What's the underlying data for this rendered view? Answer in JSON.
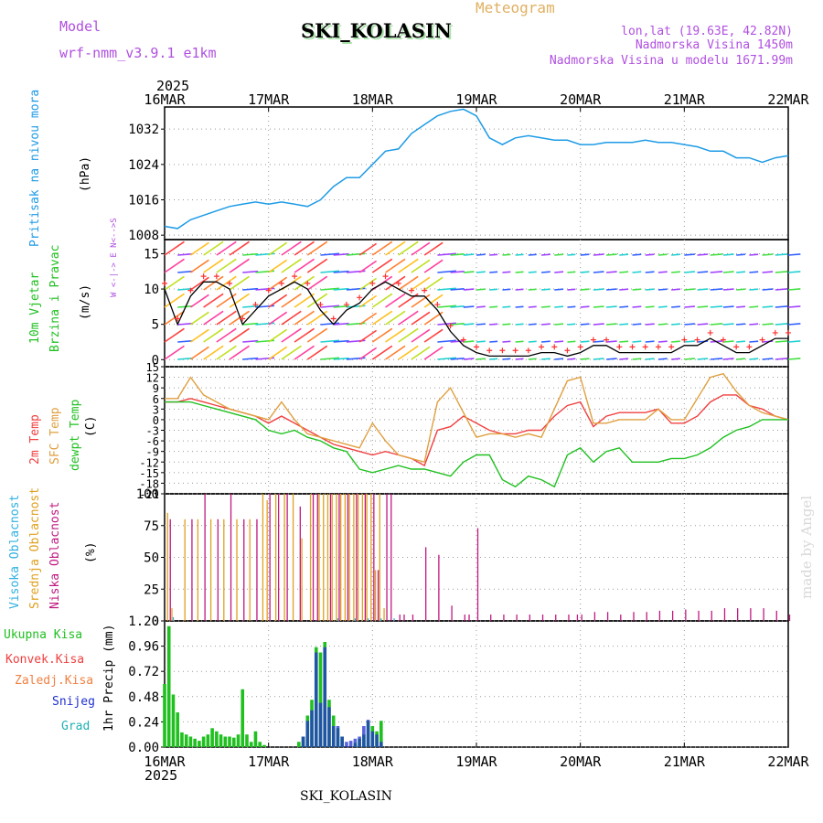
{
  "header": {
    "model_label": "Model",
    "model_name": "wrf-nmm_v3.9.1 e1km",
    "title": "SKI_KOLASIN",
    "subtitle": "Meteogram",
    "coords": "lon,lat (19.63E, 42.82N)",
    "elevation": "Nadmorska Visina 1450m",
    "model_elevation": "Nadmorska Visina u modelu 1671.99m",
    "year_top": "2025",
    "year_bottom": "2025",
    "footer": "SKI_KOLASIN",
    "credit": "made by Angel"
  },
  "colors": {
    "pressure": "#1e9be6",
    "wind_line": "#000000",
    "wind_cross": "#ff3030",
    "temp2m": "#f04040",
    "sfc": "#e0a040",
    "dewpt": "#20c020",
    "high_cloud": "#30b0e0",
    "mid_cloud": "#e0a020",
    "low_cloud": "#c01880",
    "total": "#20c020",
    "conv": "#f04040",
    "frozen": "#f08040",
    "snow": "#2030d0",
    "hail": "#20b0b0",
    "purple_text": "#b050e0",
    "orange_text": "#e0b060"
  },
  "axis": {
    "days": [
      "16MAR",
      "17MAR",
      "18MAR",
      "19MAR",
      "20MAR",
      "21MAR",
      "22MAR"
    ]
  },
  "chart_data": [
    {
      "type": "line",
      "panel": "pressure",
      "ylabel_lines": [
        "Pritisak na nivou mora"
      ],
      "unit": "(hPa)",
      "yticks": [
        1008,
        1016,
        1024,
        1032
      ],
      "ylim": [
        1007,
        1037
      ],
      "x_hours": [
        0,
        3,
        6,
        9,
        12,
        15,
        18,
        21,
        24,
        27,
        30,
        33,
        36,
        39,
        42,
        45,
        48,
        51,
        54,
        57,
        60,
        63,
        66,
        69,
        72,
        75,
        78,
        81,
        84,
        87,
        90,
        93,
        96,
        99,
        102,
        105,
        108,
        111,
        114,
        117,
        120,
        123,
        126,
        129,
        132,
        135,
        138,
        141,
        144
      ],
      "values": [
        1010,
        1009.5,
        1011.5,
        1012.5,
        1013.5,
        1014.5,
        1015,
        1015.5,
        1015,
        1015.5,
        1015,
        1014.5,
        1016,
        1019,
        1021,
        1021,
        1024,
        1027,
        1027.5,
        1031,
        1033,
        1035,
        1036,
        1036.5,
        1035,
        1030,
        1028.5,
        1030,
        1030.5,
        1030,
        1029.5,
        1029.5,
        1028.5,
        1028.5,
        1029,
        1029,
        1029,
        1029.5,
        1029,
        1029,
        1028.5,
        1028,
        1027,
        1027,
        1025.5,
        1025.5,
        1024.5,
        1025.5,
        1026
      ]
    },
    {
      "type": "line",
      "panel": "wind",
      "ylabel_lines": [
        "10m Vjetar",
        "Brzina i Pravac"
      ],
      "unit": "(m/s)",
      "compass": "W <-|-> E   N<-->S",
      "yticks": [
        0,
        5,
        10,
        15
      ],
      "ylim": [
        -1,
        17
      ],
      "x_hours": [
        0,
        3,
        6,
        9,
        12,
        15,
        18,
        21,
        24,
        27,
        30,
        33,
        36,
        39,
        42,
        45,
        48,
        51,
        54,
        57,
        60,
        63,
        66,
        69,
        72,
        75,
        78,
        81,
        84,
        87,
        90,
        93,
        96,
        99,
        102,
        105,
        108,
        111,
        114,
        117,
        120,
        123,
        126,
        129,
        132,
        135,
        138,
        141,
        144
      ],
      "values": [
        10,
        5,
        9,
        11,
        11,
        10,
        5,
        7,
        9,
        10,
        11,
        10,
        7,
        5,
        7,
        8,
        10,
        11,
        10,
        9,
        9,
        7,
        4,
        2,
        1,
        0.5,
        0.5,
        0.5,
        0.5,
        1,
        1,
        0.5,
        1,
        2,
        2,
        1,
        1,
        1,
        1,
        1,
        2,
        2,
        3,
        2,
        1,
        1,
        2,
        3,
        3
      ]
    },
    {
      "type": "line",
      "panel": "temperature",
      "ylabel_lines": [
        "2m Temp",
        "SFC Temp",
        "dewpt Temp"
      ],
      "unit": "(C)",
      "yticks": [
        -21,
        -18,
        -15,
        -12,
        -9,
        -6,
        -3,
        0,
        3,
        6,
        9,
        12,
        15
      ],
      "ylim": [
        -21,
        15
      ],
      "x_hours": [
        0,
        3,
        6,
        9,
        12,
        15,
        18,
        21,
        24,
        27,
        30,
        33,
        36,
        39,
        42,
        45,
        48,
        51,
        54,
        57,
        60,
        63,
        66,
        69,
        72,
        75,
        78,
        81,
        84,
        87,
        90,
        93,
        96,
        99,
        102,
        105,
        108,
        111,
        114,
        117,
        120,
        123,
        126,
        129,
        132,
        135,
        138,
        141,
        144
      ],
      "series": [
        {
          "name": "2m Temp",
          "values": [
            5,
            5,
            6,
            5,
            4,
            3,
            2,
            1,
            -1,
            1,
            -1,
            -3,
            -5,
            -7,
            -8,
            -9,
            -10,
            -9,
            -10,
            -11,
            -13,
            -3,
            -2,
            1,
            -1,
            -3,
            -4,
            -4,
            -3,
            -3,
            1,
            4,
            5,
            -2,
            1,
            2,
            2,
            2,
            3,
            -1,
            -1,
            1,
            5,
            7,
            7,
            4,
            3,
            1,
            0
          ]
        },
        {
          "name": "SFC Temp",
          "values": [
            6,
            6,
            12,
            7,
            5,
            3,
            2,
            1,
            0,
            5,
            0,
            -4,
            -5,
            -6,
            -7,
            -8,
            -1,
            -6,
            -10,
            -11,
            -12,
            5,
            9,
            2,
            -5,
            -4,
            -4,
            -5,
            -4,
            -5,
            3,
            11,
            12,
            -1,
            -1,
            0,
            0,
            0,
            3,
            0,
            0,
            6,
            12,
            13,
            8,
            4,
            2,
            1,
            0
          ]
        },
        {
          "name": "dewpt Temp",
          "values": [
            5,
            5,
            5,
            4,
            3,
            2,
            1,
            0,
            -3,
            -4,
            -3,
            -5,
            -6,
            -8,
            -9,
            -14,
            -15,
            -14,
            -13,
            -14,
            -14,
            -15,
            -16,
            -12,
            -10,
            -10,
            -17,
            -19,
            -16,
            -17,
            -19,
            -10,
            -8,
            -12,
            -9,
            -8,
            -12,
            -12,
            -12,
            -11,
            -11,
            -10,
            -8,
            -5,
            -3,
            -2,
            0,
            0,
            0
          ]
        }
      ]
    },
    {
      "type": "bar",
      "panel": "cloud",
      "ylabel_lines": [
        "Visoka Oblacnost",
        "Srednja Oblacnost",
        "Niska Oblacnost"
      ],
      "unit": "(%)",
      "yticks": [
        0,
        25,
        50,
        75,
        100
      ],
      "ylim": [
        0,
        100
      ],
      "series": [
        {
          "name": "Visoka Oblacnost",
          "x_hours": [
            2,
            40,
            44,
            47,
            50,
            53
          ],
          "values": [
            3,
            2,
            2,
            2,
            2,
            2
          ]
        },
        {
          "name": "Srednja Oblacnost",
          "x_hours": [
            1,
            2,
            5,
            8,
            11,
            14,
            17,
            20,
            23,
            24,
            26,
            28,
            30,
            32,
            34,
            36,
            37,
            38,
            39,
            40,
            41,
            42,
            43,
            44,
            45,
            46,
            47,
            48,
            49,
            50,
            51
          ],
          "values": [
            85,
            10,
            80,
            80,
            80,
            80,
            80,
            80,
            100,
            95,
            100,
            100,
            100,
            65,
            100,
            100,
            100,
            100,
            100,
            100,
            100,
            100,
            100,
            100,
            100,
            100,
            100,
            100,
            40,
            100,
            10
          ]
        },
        {
          "name": "Niska Oblacnost",
          "x_hours": [
            1,
            6,
            9,
            12,
            15,
            18,
            21,
            24,
            26,
            28,
            31,
            34,
            35,
            38,
            40,
            42,
            44,
            46,
            48,
            49,
            51,
            52,
            54,
            55,
            57,
            60,
            63,
            66,
            69,
            70,
            72,
            75,
            78,
            81,
            84,
            87,
            90,
            93,
            95,
            96,
            99,
            102,
            105,
            108,
            111,
            114,
            117,
            120,
            123,
            126,
            129,
            132,
            135,
            138,
            141,
            144
          ],
          "values": [
            80,
            80,
            100,
            80,
            100,
            80,
            80,
            100,
            100,
            100,
            90,
            100,
            100,
            100,
            100,
            100,
            100,
            100,
            100,
            40,
            100,
            100,
            5,
            5,
            5,
            58,
            52,
            12,
            5,
            5,
            73,
            5,
            5,
            5,
            5,
            5,
            5,
            5,
            5,
            5,
            7,
            7,
            5,
            7,
            7,
            8,
            8,
            9,
            8,
            8,
            10,
            10,
            10,
            10,
            8,
            5
          ]
        }
      ]
    },
    {
      "type": "bar",
      "panel": "precip",
      "ylabel_lines": [
        "1hr Precip (mm)"
      ],
      "legend": [
        "Ukupna Kisa",
        "Konvek.Kisa",
        "Zaledj.Kisa",
        "Snijeg",
        "Grad"
      ],
      "yticks": [
        0,
        0.24,
        0.48,
        0.72,
        0.96,
        1.2
      ],
      "ylim": [
        0,
        1.2
      ],
      "series": [
        {
          "name": "Ukupna Kisa",
          "x_hours": [
            0,
            1,
            2,
            3,
            4,
            5,
            6,
            7,
            8,
            9,
            10,
            11,
            12,
            13,
            14,
            15,
            16,
            17,
            18,
            19,
            20,
            21,
            22,
            23,
            31,
            32,
            33,
            34,
            35,
            36,
            37,
            38,
            39,
            40,
            41,
            44,
            45,
            46,
            47,
            48,
            49,
            50
          ],
          "values": [
            0.6,
            1.15,
            0.5,
            0.33,
            0.14,
            0.12,
            0.1,
            0.08,
            0.06,
            0.1,
            0.12,
            0.18,
            0.15,
            0.12,
            0.1,
            0.1,
            0.09,
            0.12,
            0.55,
            0.12,
            0.05,
            0.15,
            0.05,
            0.02,
            0.05,
            0.1,
            0.3,
            0.45,
            0.95,
            0.9,
            1.0,
            0.45,
            0.3,
            0.18,
            0.1,
            0.04,
            0.08,
            0.12,
            0.25,
            0.2,
            0.15,
            0.25
          ]
        },
        {
          "name": "Snijeg",
          "x_hours": [
            32,
            33,
            34,
            35,
            36,
            37,
            38,
            39,
            40,
            41,
            42,
            43,
            44,
            45,
            46,
            47,
            48,
            49,
            50
          ],
          "values": [
            0.1,
            0.25,
            0.35,
            0.9,
            0.42,
            0.95,
            0.38,
            0.2,
            0.2,
            0.1,
            0.05,
            0.06,
            0.08,
            0.1,
            0.2,
            0.26,
            0.15,
            0.12,
            0.05
          ]
        }
      ]
    }
  ]
}
